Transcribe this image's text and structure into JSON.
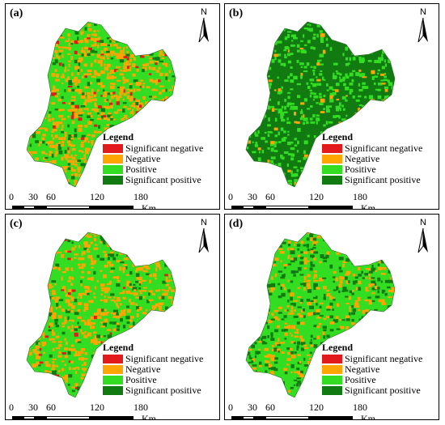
{
  "legend": {
    "title": "Legend",
    "items": [
      {
        "label": "Significant negative",
        "color": "#e31a1c"
      },
      {
        "label": "Negative",
        "color": "#ffa500"
      },
      {
        "label": "Positive",
        "color": "#33dd22"
      },
      {
        "label": "Significant positive",
        "color": "#117a11"
      }
    ]
  },
  "scale": {
    "ticks": [
      "0",
      "30",
      "60",
      "120",
      "180"
    ],
    "unit": "Km"
  },
  "north_label": "N",
  "panels": [
    {
      "label": "(a)",
      "base": "#33dd22"
    },
    {
      "label": "(b)",
      "base": "#117a11"
    },
    {
      "label": "(c)",
      "base": "#33dd22"
    },
    {
      "label": "(d)",
      "base": "#33dd22"
    }
  ]
}
